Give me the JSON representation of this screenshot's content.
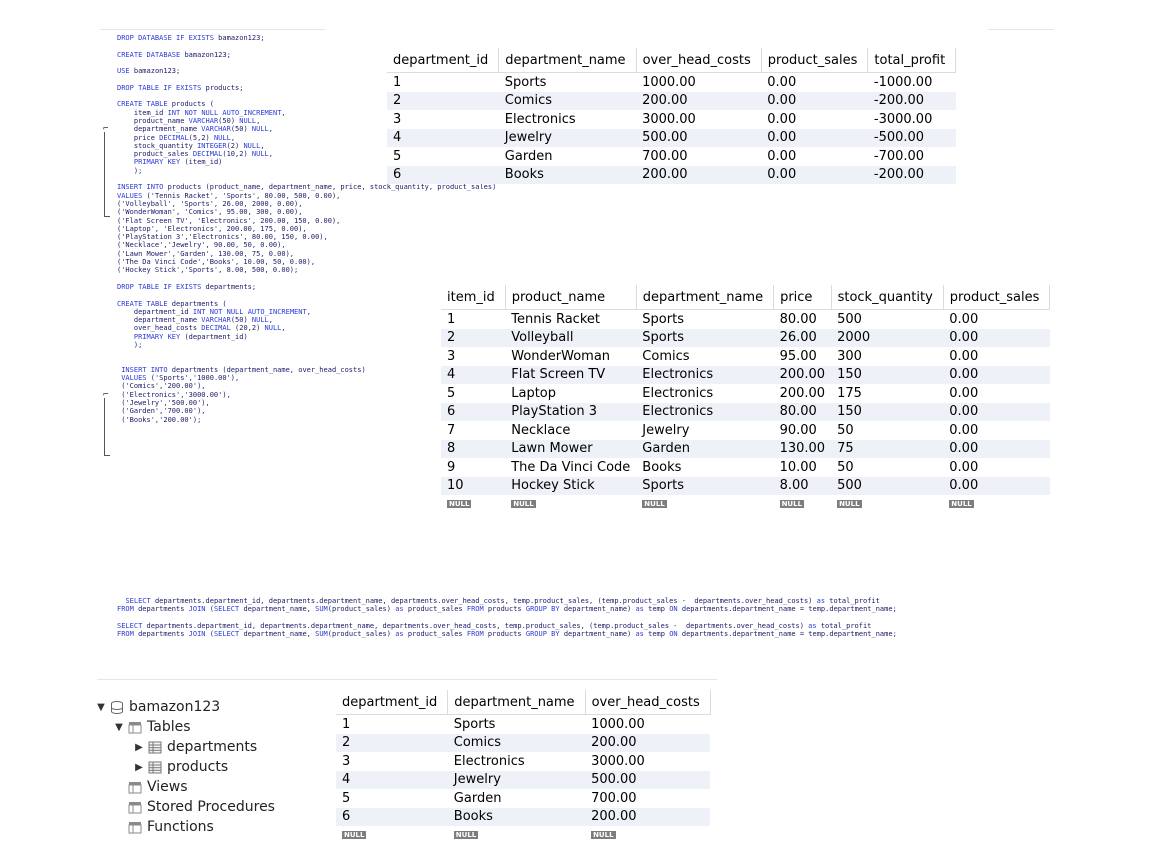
{
  "sql_lines": [
    "DROP DATABASE IF EXISTS bamazon123;",
    "",
    "CREATE DATABASE bamazon123;",
    "",
    "USE bamazon123;",
    "",
    "DROP TABLE IF EXISTS products;",
    "",
    "CREATE TABLE products (",
    "    item_id INT NOT NULL AUTO_INCREMENT,",
    "    product_name VARCHAR(50) NULL,",
    "    department_name VARCHAR(50) NULL,",
    "    price DECIMAL(5,2) NULL,",
    "    stock_quantity INTEGER(2) NULL,",
    "    product_sales DECIMAL(10,2) NULL,",
    "    PRIMARY KEY (item_id)",
    "    );",
    "",
    "INSERT INTO products (product_name, department_name, price, stock_quantity, product_sales)",
    "VALUES ('Tennis Racket', 'Sports', 80.00, 500, 0.00),",
    "('Volleyball', 'Sports', 26.00, 2000, 0.00),",
    "('WonderWoman', 'Comics', 95.00, 300, 0.00),",
    "('Flat Screen TV', 'Electronics', 200.00, 150, 0.00),",
    "('Laptop', 'Electronics', 200.00, 175, 0.00),",
    "('PlayStation 3','Electronics', 80.00, 150, 0.00),",
    "('Necklace','Jewelry', 90.00, 50, 0.00),",
    "('Lawn Mower','Garden', 130.00, 75, 0.00),",
    "('The Da Vinci Code','Books', 10.00, 50, 0.00),",
    "('Hockey Stick','Sports', 8.00, 500, 0.00);",
    "",
    "DROP TABLE IF EXISTS departments;",
    "",
    "CREATE TABLE departments (",
    "    department_id INT NOT NULL AUTO_INCREMENT,",
    "    department_name VARCHAR(50) NULL,",
    "    over_head_costs DECIMAL (20,2) NULL,",
    "    PRIMARY KEY (department_id)",
    "    );",
    "",
    "",
    " INSERT INTO departments (department_name, over_head_costs)",
    " VALUES ('Sports','1000.00'),",
    " ('Comics','200.00'),",
    " ('Electronics','3000.00'),",
    " ('Jewelry','500.00'),",
    " ('Garden','700.00'),",
    " ('Books','200.00');"
  ],
  "select_lines": [
    "  SELECT departments.department_id, departments.department_name, departments.over_head_costs, temp.product_sales, (temp.product_sales -  departments.over_head_costs) as total_profit",
    "FROM departments JOIN (SELECT department_name, SUM(product_sales) as product_sales FROM products GROUP BY department_name) as temp ON departments.department_name = temp.department_name;",
    "",
    "SELECT departments.department_id, departments.department_name, departments.over_head_costs, temp.product_sales, (temp.product_sales -  departments.over_head_costs) as total_profit",
    "FROM departments JOIN (SELECT department_name, SUM(product_sales) as product_sales FROM products GROUP BY department_name) as temp ON departments.department_name = temp.department_name;"
  ],
  "null_label": "NULL",
  "profit_table": {
    "columns": [
      "department_id",
      "department_name",
      "over_head_costs",
      "product_sales",
      "total_profit"
    ],
    "rows": [
      [
        "1",
        "Sports",
        "1000.00",
        "0.00",
        "-1000.00"
      ],
      [
        "2",
        "Comics",
        "200.00",
        "0.00",
        "-200.00"
      ],
      [
        "3",
        "Electronics",
        "3000.00",
        "0.00",
        "-3000.00"
      ],
      [
        "4",
        "Jewelry",
        "500.00",
        "0.00",
        "-500.00"
      ],
      [
        "5",
        "Garden",
        "700.00",
        "0.00",
        "-700.00"
      ],
      [
        "6",
        "Books",
        "200.00",
        "0.00",
        "-200.00"
      ]
    ]
  },
  "products_table": {
    "columns": [
      "item_id",
      "product_name",
      "department_name",
      "price",
      "stock_quantity",
      "product_sales"
    ],
    "rows": [
      [
        "1",
        "Tennis Racket",
        "Sports",
        "80.00",
        "500",
        "0.00"
      ],
      [
        "2",
        "Volleyball",
        "Sports",
        "26.00",
        "2000",
        "0.00"
      ],
      [
        "3",
        "WonderWoman",
        "Comics",
        "95.00",
        "300",
        "0.00"
      ],
      [
        "4",
        "Flat Screen TV",
        "Electronics",
        "200.00",
        "150",
        "0.00"
      ],
      [
        "5",
        "Laptop",
        "Electronics",
        "200.00",
        "175",
        "0.00"
      ],
      [
        "6",
        "PlayStation 3",
        "Electronics",
        "80.00",
        "150",
        "0.00"
      ],
      [
        "7",
        "Necklace",
        "Jewelry",
        "90.00",
        "50",
        "0.00"
      ],
      [
        "8",
        "Lawn Mower",
        "Garden",
        "130.00",
        "75",
        "0.00"
      ],
      [
        "9",
        "The Da Vinci Code",
        "Books",
        "10.00",
        "50",
        "0.00"
      ],
      [
        "10",
        "Hockey Stick",
        "Sports",
        "8.00",
        "500",
        "0.00"
      ]
    ]
  },
  "departments_table": {
    "columns": [
      "department_id",
      "department_name",
      "over_head_costs"
    ],
    "rows": [
      [
        "1",
        "Sports",
        "1000.00"
      ],
      [
        "2",
        "Comics",
        "200.00"
      ],
      [
        "3",
        "Electronics",
        "3000.00"
      ],
      [
        "4",
        "Jewelry",
        "500.00"
      ],
      [
        "5",
        "Garden",
        "700.00"
      ],
      [
        "6",
        "Books",
        "200.00"
      ]
    ]
  },
  "schema_tree": {
    "database": "bamazon123",
    "tables_label": "Tables",
    "tables": [
      "departments",
      "products"
    ],
    "views_label": "Views",
    "procedures_label": "Stored Procedures",
    "functions_label": "Functions"
  },
  "colors": {
    "keyword": "#2b3bd6",
    "code_text": "#1a1a66",
    "alt_row": "#eef2f8",
    "null_badge": "#7d7d7d"
  }
}
